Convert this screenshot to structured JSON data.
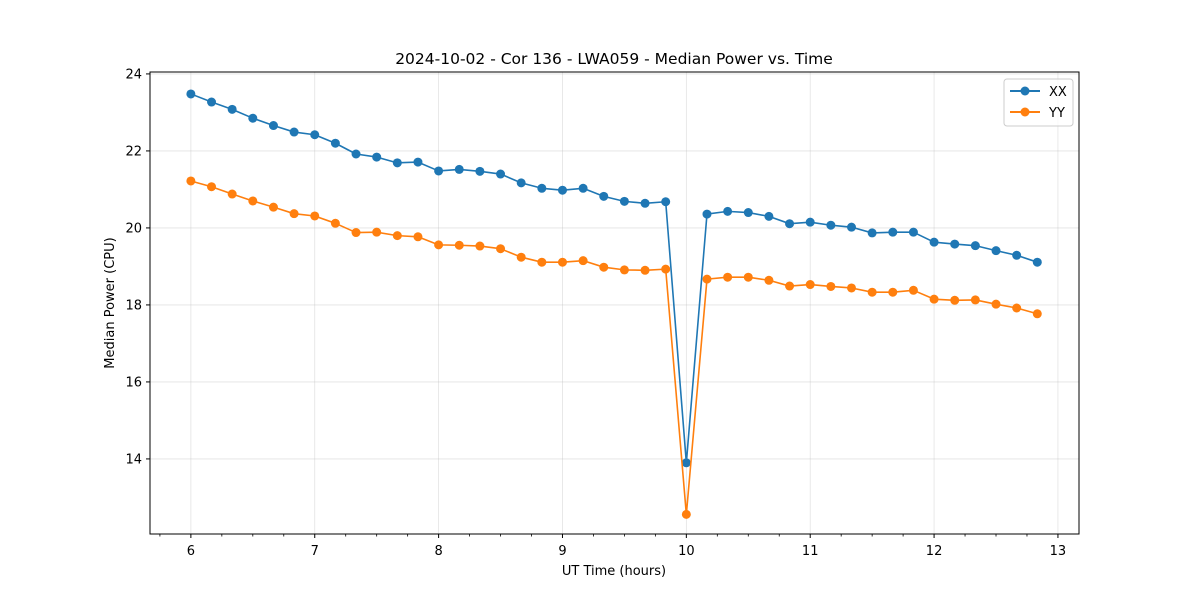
{
  "chart_data": {
    "type": "line",
    "title": "2024-10-02 - Cor 136 - LWA059 - Median Power vs. Time",
    "xlabel": "UT Time (hours)",
    "ylabel": "Median Power (CPU)",
    "xlim": [
      5.67,
      13.17
    ],
    "ylim": [
      12.05,
      24.05
    ],
    "x_ticks": [
      6,
      7,
      8,
      9,
      10,
      11,
      12,
      13
    ],
    "x_tick_labels": [
      "6",
      "7",
      "8",
      "9",
      "10",
      "11",
      "12",
      "13"
    ],
    "y_ticks": [
      14,
      16,
      18,
      20,
      22,
      24
    ],
    "y_tick_labels": [
      "14",
      "16",
      "18",
      "20",
      "22",
      "24"
    ],
    "x_minor_step": 0.25,
    "grid": true,
    "legend_position": "top-right",
    "x": [
      6.0,
      6.1667,
      6.3333,
      6.5,
      6.6667,
      6.8333,
      7.0,
      7.1667,
      7.3333,
      7.5,
      7.6667,
      7.8333,
      8.0,
      8.1667,
      8.3333,
      8.5,
      8.6667,
      8.8333,
      9.0,
      9.1667,
      9.3333,
      9.5,
      9.6667,
      9.8333,
      10.0,
      10.1667,
      10.3333,
      10.5,
      10.6667,
      10.8333,
      11.0,
      11.1667,
      11.3333,
      11.5,
      11.6667,
      11.8333,
      12.0,
      12.1667,
      12.3333,
      12.5,
      12.6667,
      12.8333
    ],
    "series": [
      {
        "name": "XX",
        "color": "#1f77b4",
        "values": [
          23.48,
          23.27,
          23.08,
          22.85,
          22.66,
          22.49,
          22.42,
          22.2,
          21.92,
          21.84,
          21.69,
          21.71,
          21.48,
          21.52,
          21.47,
          21.4,
          21.17,
          21.03,
          20.98,
          21.03,
          20.82,
          20.69,
          20.64,
          20.68,
          13.9,
          20.36,
          20.43,
          20.4,
          20.3,
          20.11,
          20.15,
          20.07,
          20.02,
          19.87,
          19.89,
          19.89,
          19.63,
          19.58,
          19.54,
          19.41,
          19.29,
          19.11
        ]
      },
      {
        "name": "YY",
        "color": "#ff7f0e",
        "values": [
          21.22,
          21.07,
          20.88,
          20.7,
          20.54,
          20.37,
          20.31,
          20.12,
          19.88,
          19.89,
          19.8,
          19.77,
          19.56,
          19.55,
          19.53,
          19.46,
          19.24,
          19.11,
          19.11,
          19.15,
          18.98,
          18.91,
          18.9,
          18.93,
          12.56,
          18.67,
          18.72,
          18.72,
          18.64,
          18.49,
          18.53,
          18.48,
          18.44,
          18.33,
          18.33,
          18.38,
          18.15,
          18.12,
          18.13,
          18.02,
          17.92,
          17.77
        ]
      }
    ]
  }
}
